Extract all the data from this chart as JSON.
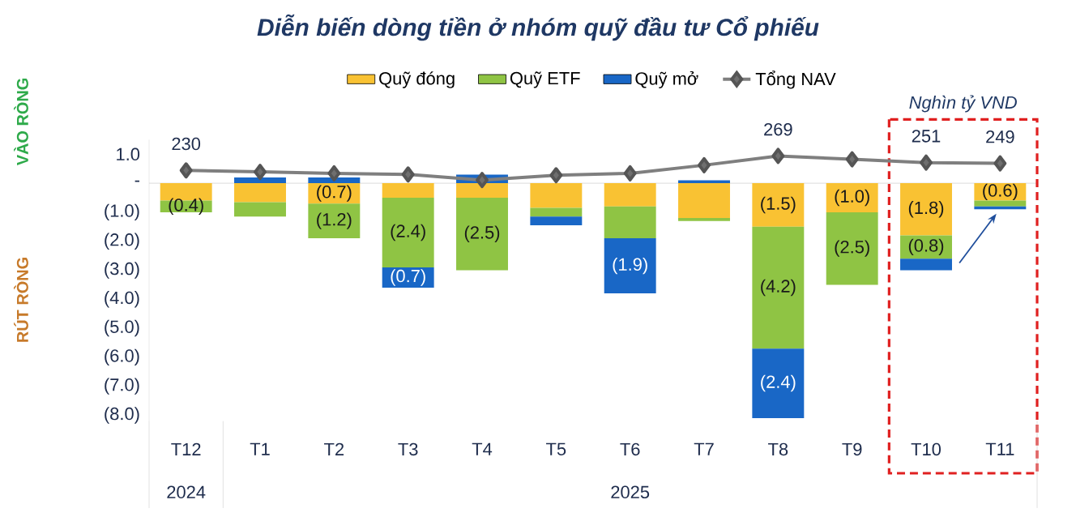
{
  "chart_data": {
    "type": "bar",
    "stacked": true,
    "title": "Diễn biến dòng tiền ở nhóm quỹ đầu tư Cổ phiếu",
    "categories": [
      "T12",
      "T1",
      "T2",
      "T3",
      "T4",
      "T5",
      "T6",
      "T7",
      "T8",
      "T9",
      "T10",
      "T11"
    ],
    "series": [
      {
        "name": "Quỹ đóng",
        "color": "#f9c233",
        "values": [
          -0.6,
          -0.65,
          -0.7,
          -0.5,
          -0.5,
          -0.85,
          -0.8,
          -1.2,
          -1.5,
          -1.0,
          -1.8,
          -0.6
        ],
        "value_labels": [
          null,
          null,
          "(0.7)",
          null,
          null,
          null,
          null,
          null,
          "(1.5)",
          "(1.0)",
          "(1.8)",
          "(0.6)"
        ]
      },
      {
        "name": "Quỹ ETF",
        "color": "#8fc444",
        "values": [
          -0.4,
          -0.5,
          -1.2,
          -2.4,
          -2.5,
          -0.3,
          -1.1,
          -0.1,
          -4.2,
          -2.5,
          -0.8,
          -0.2
        ],
        "value_labels": [
          "(0.4)",
          null,
          "(1.2)",
          "(2.4)",
          "(2.5)",
          null,
          null,
          null,
          "(4.2)",
          "(2.5)",
          "(0.8)",
          null
        ]
      },
      {
        "name": "Quỹ mở",
        "color": "#1967c6",
        "values": [
          0,
          0.2,
          0.2,
          -0.7,
          0.3,
          -0.3,
          -1.9,
          0.1,
          -2.4,
          0,
          -0.4,
          -0.1
        ],
        "value_labels": [
          null,
          null,
          null,
          "(0.7)",
          null,
          null,
          "(1.9)",
          null,
          "(2.4)",
          null,
          null,
          null
        ]
      },
      {
        "name": "Tổng NAV",
        "type": "line",
        "axis": "y2",
        "color": "#7f7f7f",
        "marker": "diamond",
        "values": [
          230,
          226,
          222,
          219,
          204,
          217,
          222,
          244,
          269,
          260,
          251,
          249
        ],
        "value_labels": [
          "230",
          null,
          null,
          null,
          null,
          null,
          null,
          null,
          "269",
          null,
          "251",
          "249"
        ]
      }
    ],
    "ylim": [
      -8.2,
      1.5
    ],
    "yticks": [
      {
        "value": -8,
        "label": "(8.0)"
      },
      {
        "value": -7,
        "label": "(7.0)"
      },
      {
        "value": -6,
        "label": "(6.0)"
      },
      {
        "value": -5,
        "label": "(5.0)"
      },
      {
        "value": -4,
        "label": "(4.0)"
      },
      {
        "value": -3,
        "label": "(3.0)"
      },
      {
        "value": -2,
        "label": "(2.0)"
      },
      {
        "value": -1,
        "label": "(1.0)"
      },
      {
        "value": 0,
        "label": "-"
      },
      {
        "value": 1,
        "label": "1.0"
      }
    ],
    "legend": "top",
    "annotations": [
      "2024",
      "2025",
      "Nghìn tỷ VND",
      "VÀO RÒNG",
      "RÚT RÒNG"
    ]
  }
}
